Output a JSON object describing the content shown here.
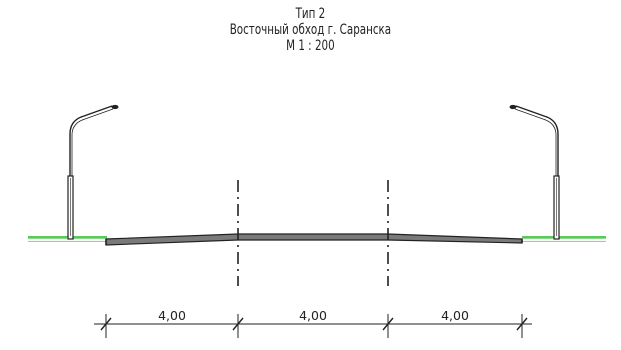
{
  "title": {
    "line1": "Тип 2",
    "line2": "Восточный обход г. Саранска",
    "line3": "М 1 : 200"
  },
  "dimensions": [
    {
      "label": "4,00"
    },
    {
      "label": "4,00"
    },
    {
      "label": "4,00"
    }
  ],
  "colors": {
    "grass": "#3bbf3b",
    "road_fill": "#7a7a7a",
    "line": "#222222"
  }
}
